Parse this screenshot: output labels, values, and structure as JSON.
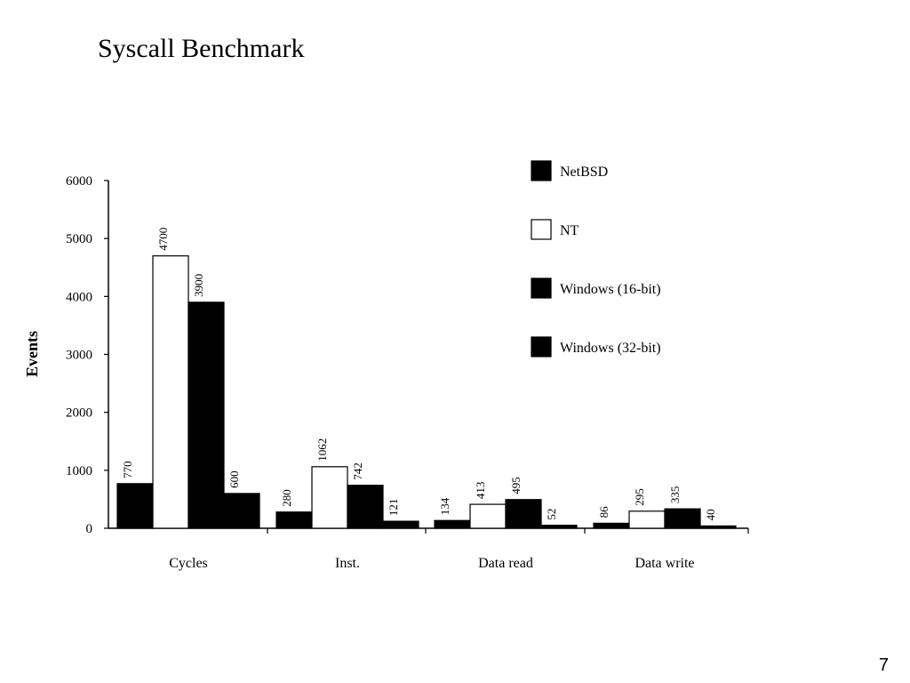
{
  "slide": {
    "title": "Syscall Benchmark",
    "page_number": "7"
  },
  "chart_data": {
    "type": "bar",
    "title": "",
    "xlabel": "",
    "ylabel": "Events",
    "ylim": [
      0,
      6000
    ],
    "yticks": [
      "0",
      "1000",
      "2000",
      "3000",
      "4000",
      "5000",
      "6000"
    ],
    "categories": [
      "Cycles",
      "Inst.",
      "Data read",
      "Data write"
    ],
    "series": [
      {
        "name": "NetBSD",
        "fill": "#000000",
        "values": [
          770,
          280,
          134,
          86
        ],
        "labels": [
          "770",
          "280",
          "134",
          "86"
        ]
      },
      {
        "name": "NT",
        "fill": "#ffffff",
        "values": [
          4700,
          1062,
          413,
          295
        ],
        "labels": [
          "4700",
          "1062",
          "413",
          "295"
        ]
      },
      {
        "name": "Windows (16-bit)",
        "fill": "#000000",
        "values": [
          3900,
          742,
          495,
          335
        ],
        "labels": [
          "3900",
          "742",
          "495",
          "335"
        ]
      },
      {
        "name": "Windows (32-bit)",
        "fill": "#000000",
        "values": [
          600,
          121,
          52,
          40
        ],
        "labels": [
          "600",
          "121",
          "52",
          "40"
        ]
      }
    ],
    "legend_position": "top-right",
    "grid": false
  }
}
